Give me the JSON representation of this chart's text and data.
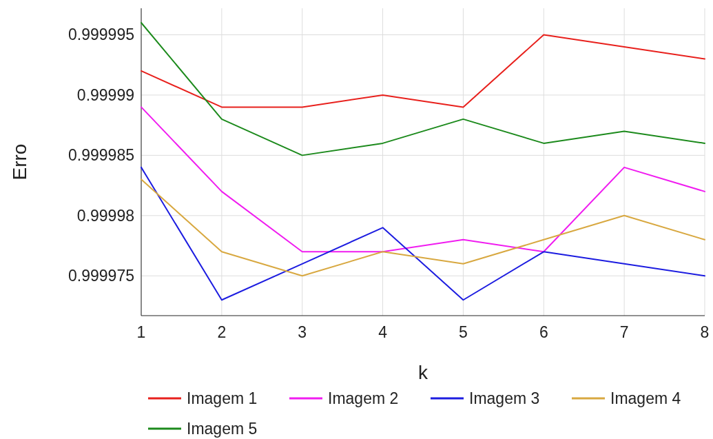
{
  "chart_data": {
    "type": "line",
    "xlabel": "k",
    "ylabel": "Erro",
    "x": [
      1,
      2,
      3,
      4,
      5,
      6,
      7,
      8
    ],
    "xlim": [
      1,
      8
    ],
    "xticks": [
      1,
      2,
      3,
      4,
      5,
      6,
      7,
      8
    ],
    "ylim": [
      0.9999717,
      0.9999972
    ],
    "yticks": [
      0.999975,
      0.99998,
      0.999985,
      0.99999,
      0.999995
    ],
    "grid": true,
    "legend": "bottom",
    "line_style": "solid",
    "marker": "none",
    "series": [
      {
        "name": "Imagem 1",
        "color": "#e8201c",
        "values": [
          0.999992,
          0.999989,
          0.999989,
          0.99999,
          0.999989,
          0.999995,
          0.999994,
          0.999993
        ]
      },
      {
        "name": "Imagem 2",
        "color": "#f01cf0",
        "values": [
          0.999989,
          0.999982,
          0.999977,
          0.999977,
          0.999978,
          0.999977,
          0.999984,
          0.999982
        ]
      },
      {
        "name": "Imagem 3",
        "color": "#1c1ce0",
        "values": [
          0.999984,
          0.999973,
          0.999976,
          0.999979,
          0.999973,
          0.999977,
          0.999976,
          0.999975
        ]
      },
      {
        "name": "Imagem 4",
        "color": "#d8a840",
        "values": [
          0.999983,
          0.999977,
          0.999975,
          0.999977,
          0.999976,
          0.999978,
          0.99998,
          0.999978
        ]
      },
      {
        "name": "Imagem 5",
        "color": "#1c8a1c",
        "values": [
          0.999996,
          0.999988,
          0.999985,
          0.999986,
          0.999988,
          0.999986,
          0.999987,
          0.999986
        ]
      }
    ]
  }
}
